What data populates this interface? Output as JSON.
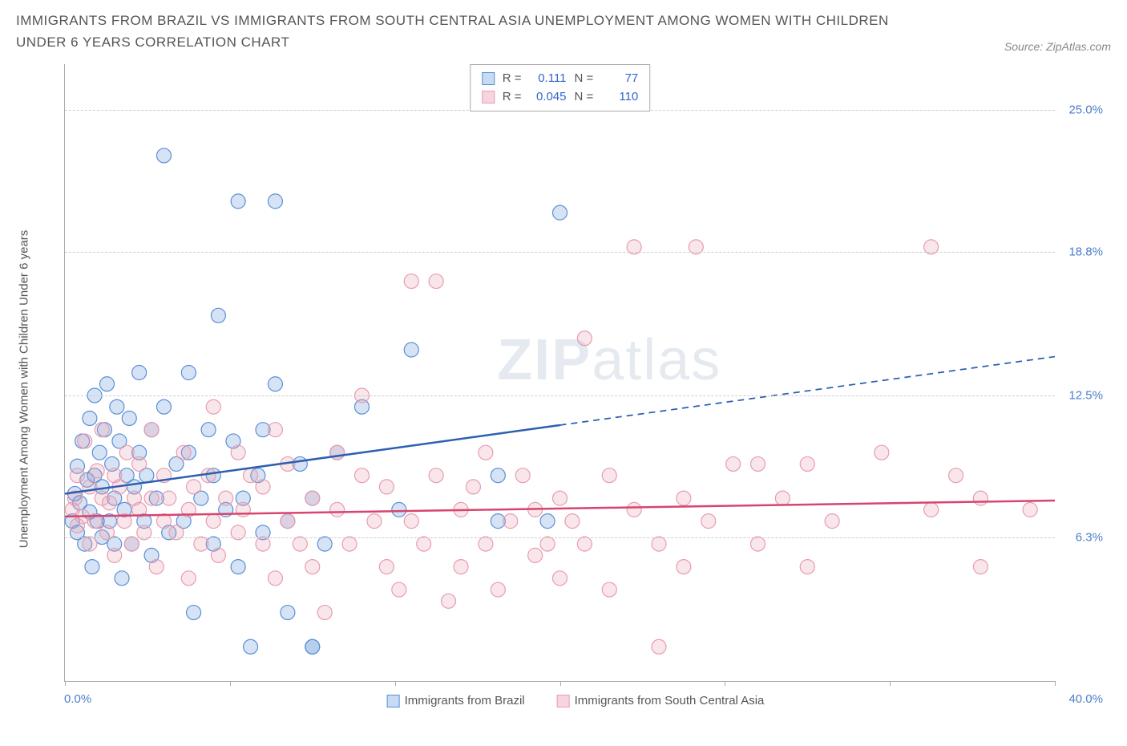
{
  "header": {
    "title": "IMMIGRANTS FROM BRAZIL VS IMMIGRANTS FROM SOUTH CENTRAL ASIA UNEMPLOYMENT AMONG WOMEN WITH CHILDREN UNDER 6 YEARS CORRELATION CHART",
    "source": "Source: ZipAtlas.com"
  },
  "chart": {
    "type": "scatter",
    "ylabel": "Unemployment Among Women with Children Under 6 years",
    "xlim": [
      0,
      40
    ],
    "ylim": [
      0,
      27
    ],
    "xmin_label": "0.0%",
    "xmax_label": "40.0%",
    "yticks": [
      6.3,
      12.5,
      18.8,
      25.0
    ],
    "ytick_labels": [
      "6.3%",
      "12.5%",
      "18.8%",
      "25.0%"
    ],
    "xticks": [
      0,
      6.67,
      13.33,
      20,
      26.67,
      33.33,
      40
    ],
    "background_color": "#ffffff",
    "grid_color": "#cccccc",
    "axis_color": "#aaaaaa",
    "marker_radius": 9,
    "marker_fill_opacity": 0.25,
    "marker_stroke_width": 1.2,
    "line_width": 2.5,
    "watermark": "ZIPatlas",
    "series": [
      {
        "name": "Immigrants from Brazil",
        "color": "#5b8fd6",
        "line_color": "#2d5fb0",
        "R": "0.111",
        "N": "77",
        "regression": {
          "x1": 0,
          "y1": 8.2,
          "x2": 20,
          "y2": 11.2,
          "ext_x2": 40,
          "ext_y2": 14.2
        },
        "points": [
          [
            0.3,
            7.0
          ],
          [
            0.4,
            8.2
          ],
          [
            0.5,
            6.5
          ],
          [
            0.5,
            9.4
          ],
          [
            0.6,
            7.8
          ],
          [
            0.7,
            10.5
          ],
          [
            0.8,
            6.0
          ],
          [
            0.9,
            8.8
          ],
          [
            1.0,
            7.4
          ],
          [
            1.0,
            11.5
          ],
          [
            1.1,
            5.0
          ],
          [
            1.2,
            9.0
          ],
          [
            1.2,
            12.5
          ],
          [
            1.3,
            7.0
          ],
          [
            1.4,
            10.0
          ],
          [
            1.5,
            6.3
          ],
          [
            1.5,
            8.5
          ],
          [
            1.6,
            11.0
          ],
          [
            1.7,
            13.0
          ],
          [
            1.8,
            7.0
          ],
          [
            1.9,
            9.5
          ],
          [
            2.0,
            6.0
          ],
          [
            2.0,
            8.0
          ],
          [
            2.1,
            12.0
          ],
          [
            2.2,
            10.5
          ],
          [
            2.3,
            4.5
          ],
          [
            2.4,
            7.5
          ],
          [
            2.5,
            9.0
          ],
          [
            2.6,
            11.5
          ],
          [
            2.7,
            6.0
          ],
          [
            2.8,
            8.5
          ],
          [
            3.0,
            10.0
          ],
          [
            3.0,
            13.5
          ],
          [
            3.2,
            7.0
          ],
          [
            3.3,
            9.0
          ],
          [
            3.5,
            11.0
          ],
          [
            3.5,
            5.5
          ],
          [
            3.7,
            8.0
          ],
          [
            4.0,
            12.0
          ],
          [
            4.0,
            23.0
          ],
          [
            4.2,
            6.5
          ],
          [
            4.5,
            9.5
          ],
          [
            4.8,
            7.0
          ],
          [
            5.0,
            10.0
          ],
          [
            5.0,
            13.5
          ],
          [
            5.2,
            3.0
          ],
          [
            5.5,
            8.0
          ],
          [
            5.8,
            11.0
          ],
          [
            6.0,
            6.0
          ],
          [
            6.0,
            9.0
          ],
          [
            6.2,
            16.0
          ],
          [
            6.5,
            7.5
          ],
          [
            6.8,
            10.5
          ],
          [
            7.0,
            5.0
          ],
          [
            7.0,
            21.0
          ],
          [
            7.2,
            8.0
          ],
          [
            7.5,
            1.5
          ],
          [
            7.8,
            9.0
          ],
          [
            8.0,
            6.5
          ],
          [
            8.0,
            11.0
          ],
          [
            8.5,
            13.0
          ],
          [
            8.5,
            21.0
          ],
          [
            9.0,
            7.0
          ],
          [
            9.0,
            3.0
          ],
          [
            9.5,
            9.5
          ],
          [
            10.0,
            1.5
          ],
          [
            10.0,
            1.5
          ],
          [
            10.0,
            8.0
          ],
          [
            10.5,
            6.0
          ],
          [
            11.0,
            10.0
          ],
          [
            12.0,
            12.0
          ],
          [
            13.5,
            7.5
          ],
          [
            14.0,
            14.5
          ],
          [
            17.5,
            7.0
          ],
          [
            17.5,
            9.0
          ],
          [
            19.5,
            7.0
          ],
          [
            20.0,
            20.5
          ]
        ]
      },
      {
        "name": "Immigrants from South Central Asia",
        "color": "#e89cb0",
        "line_color": "#d6456f",
        "R": "0.045",
        "N": "110",
        "regression": {
          "x1": 0,
          "y1": 7.2,
          "x2": 40,
          "y2": 7.9,
          "ext_x2": 40,
          "ext_y2": 7.9
        },
        "points": [
          [
            0.3,
            7.5
          ],
          [
            0.4,
            8.0
          ],
          [
            0.5,
            6.8
          ],
          [
            0.5,
            9.0
          ],
          [
            0.7,
            7.2
          ],
          [
            0.8,
            10.5
          ],
          [
            1.0,
            6.0
          ],
          [
            1.0,
            8.5
          ],
          [
            1.2,
            7.0
          ],
          [
            1.3,
            9.2
          ],
          [
            1.5,
            8.0
          ],
          [
            1.5,
            11.0
          ],
          [
            1.7,
            6.5
          ],
          [
            1.8,
            7.8
          ],
          [
            2.0,
            9.0
          ],
          [
            2.0,
            5.5
          ],
          [
            2.2,
            8.5
          ],
          [
            2.4,
            7.0
          ],
          [
            2.5,
            10.0
          ],
          [
            2.7,
            6.0
          ],
          [
            2.8,
            8.0
          ],
          [
            3.0,
            9.5
          ],
          [
            3.0,
            7.5
          ],
          [
            3.2,
            6.5
          ],
          [
            3.5,
            8.0
          ],
          [
            3.5,
            11.0
          ],
          [
            3.7,
            5.0
          ],
          [
            4.0,
            7.0
          ],
          [
            4.0,
            9.0
          ],
          [
            4.2,
            8.0
          ],
          [
            4.5,
            6.5
          ],
          [
            4.8,
            10.0
          ],
          [
            5.0,
            7.5
          ],
          [
            5.0,
            4.5
          ],
          [
            5.2,
            8.5
          ],
          [
            5.5,
            6.0
          ],
          [
            5.8,
            9.0
          ],
          [
            6.0,
            7.0
          ],
          [
            6.0,
            12.0
          ],
          [
            6.2,
            5.5
          ],
          [
            6.5,
            8.0
          ],
          [
            7.0,
            6.5
          ],
          [
            7.0,
            10.0
          ],
          [
            7.2,
            7.5
          ],
          [
            7.5,
            9.0
          ],
          [
            8.0,
            6.0
          ],
          [
            8.0,
            8.5
          ],
          [
            8.5,
            4.5
          ],
          [
            8.5,
            11.0
          ],
          [
            9.0,
            7.0
          ],
          [
            9.0,
            9.5
          ],
          [
            9.5,
            6.0
          ],
          [
            10.0,
            8.0
          ],
          [
            10.0,
            5.0
          ],
          [
            10.5,
            3.0
          ],
          [
            11.0,
            7.5
          ],
          [
            11.0,
            10.0
          ],
          [
            11.5,
            6.0
          ],
          [
            12.0,
            9.0
          ],
          [
            12.0,
            12.5
          ],
          [
            12.5,
            7.0
          ],
          [
            13.0,
            5.0
          ],
          [
            13.0,
            8.5
          ],
          [
            13.5,
            4.0
          ],
          [
            14.0,
            7.0
          ],
          [
            14.0,
            17.5
          ],
          [
            14.5,
            6.0
          ],
          [
            15.0,
            9.0
          ],
          [
            15.0,
            17.5
          ],
          [
            15.5,
            3.5
          ],
          [
            16.0,
            7.5
          ],
          [
            16.0,
            5.0
          ],
          [
            16.5,
            8.5
          ],
          [
            17.0,
            6.0
          ],
          [
            17.0,
            10.0
          ],
          [
            17.5,
            4.0
          ],
          [
            18.0,
            7.0
          ],
          [
            18.5,
            9.0
          ],
          [
            19.0,
            5.5
          ],
          [
            19.0,
            7.5
          ],
          [
            19.5,
            6.0
          ],
          [
            20.0,
            8.0
          ],
          [
            20.0,
            4.5
          ],
          [
            20.5,
            7.0
          ],
          [
            21.0,
            15.0
          ],
          [
            21.0,
            6.0
          ],
          [
            22.0,
            9.0
          ],
          [
            22.0,
            4.0
          ],
          [
            23.0,
            7.5
          ],
          [
            23.0,
            19.0
          ],
          [
            24.0,
            6.0
          ],
          [
            24.0,
            1.5
          ],
          [
            25.0,
            8.0
          ],
          [
            25.0,
            5.0
          ],
          [
            25.5,
            19.0
          ],
          [
            26.0,
            7.0
          ],
          [
            27.0,
            9.5
          ],
          [
            28.0,
            6.0
          ],
          [
            28.0,
            9.5
          ],
          [
            29.0,
            8.0
          ],
          [
            30.0,
            5.0
          ],
          [
            30.0,
            9.5
          ],
          [
            31.0,
            7.0
          ],
          [
            33.0,
            10.0
          ],
          [
            35.0,
            7.5
          ],
          [
            35.0,
            19.0
          ],
          [
            36.0,
            9.0
          ],
          [
            37.0,
            5.0
          ],
          [
            37.0,
            8.0
          ],
          [
            39.0,
            7.5
          ]
        ]
      }
    ],
    "legend": {
      "stats_labels": {
        "r": "R =",
        "n": "N ="
      },
      "bottom": [
        {
          "label": "Immigrants from Brazil",
          "fill": "#c7dbf2",
          "stroke": "#5b8fd6"
        },
        {
          "label": "Immigrants from South Central Asia",
          "fill": "#f6d5de",
          "stroke": "#e89cb0"
        }
      ]
    }
  }
}
